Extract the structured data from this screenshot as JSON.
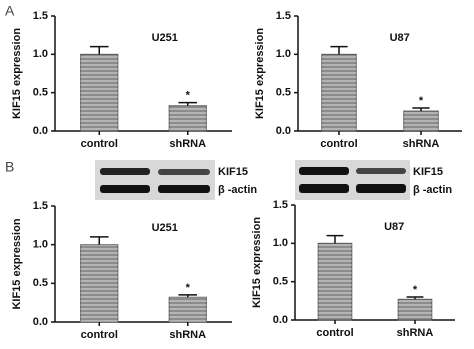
{
  "panel_labels": [
    "A",
    "B"
  ],
  "blots": [
    {
      "labels": [
        "KIF15",
        "β -actin"
      ]
    },
    {
      "labels": [
        "KIF15",
        "β -actin"
      ]
    }
  ],
  "chart_data": [
    {
      "type": "bar",
      "title": "U251",
      "ylabel": "KIF15 expression",
      "categories": [
        "control",
        "shRNA"
      ],
      "values": [
        1.0,
        0.33
      ],
      "errors": [
        0.1,
        0.04
      ],
      "significance": [
        null,
        "*"
      ],
      "color": "#8c8c8c",
      "ylim": [
        0,
        1.5
      ],
      "yticks": [
        {
          "value": 0,
          "label": "0.0"
        },
        0.5,
        {
          "value": 1,
          "label": "1.0"
        },
        1.5
      ]
    },
    {
      "type": "bar",
      "title": "U87",
      "ylabel": "KIF15 expression",
      "categories": [
        "control",
        "shRNA"
      ],
      "values": [
        1.0,
        0.26
      ],
      "errors": [
        0.1,
        0.04
      ],
      "significance": [
        null,
        "*"
      ],
      "color": "#8c8c8c",
      "ylim": [
        0,
        1.5
      ],
      "yticks": [
        {
          "value": 0,
          "label": "0.0"
        },
        0.5,
        {
          "value": 1,
          "label": "1.0"
        },
        1.5
      ]
    },
    {
      "type": "bar",
      "title": "U251",
      "ylabel": "KIF15 expression",
      "categories": [
        "control",
        "shRNA"
      ],
      "values": [
        1.0,
        0.32
      ],
      "errors": [
        0.1,
        0.03
      ],
      "significance": [
        null,
        "*"
      ],
      "color": "#8c8c8c",
      "ylim": [
        0,
        1.5
      ],
      "yticks": [
        {
          "value": 0,
          "label": "0.0"
        },
        0.5,
        {
          "value": 1,
          "label": "1.0"
        },
        1.5
      ]
    },
    {
      "type": "bar",
      "title": "U87",
      "ylabel": "KIF15 expression",
      "categories": [
        "control",
        "shRNA"
      ],
      "values": [
        1.0,
        0.27
      ],
      "errors": [
        0.1,
        0.03
      ],
      "significance": [
        null,
        "*"
      ],
      "color": "#8c8c8c",
      "ylim": [
        0,
        1.5
      ],
      "yticks": [
        {
          "value": 0,
          "label": "0.0"
        },
        0.5,
        {
          "value": 1,
          "label": "1.0"
        },
        1.5
      ]
    }
  ]
}
